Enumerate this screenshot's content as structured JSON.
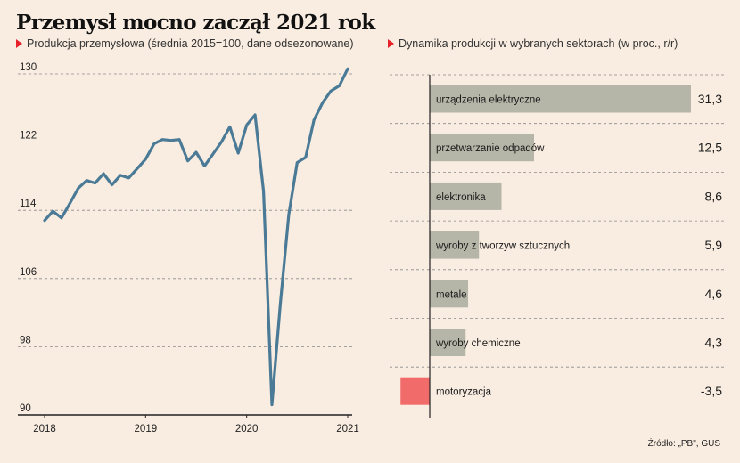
{
  "title": "Przemysł mocno zaczął 2021 rok",
  "left_subtitle": "Produkcja przemysłowa (średnia 2015=100, dane odsezonowane)",
  "right_subtitle": "Dynamika produkcji w wybranych sektorach (w proc., r/r)",
  "source": "Źródło: „PB\", GUS",
  "colors": {
    "background": "#f9ede1",
    "line": "#4a7a96",
    "bar_positive": "#b5b5a8",
    "bar_negative": "#f26b6b",
    "accent": "#e8202a"
  },
  "chart_data": [
    {
      "type": "line",
      "title": "",
      "xlabel": "",
      "ylabel": "",
      "ylim": [
        90,
        130
      ],
      "yticks": [
        90,
        98,
        106,
        114,
        122,
        130
      ],
      "xticks": [
        "2018",
        "2019",
        "2020",
        "2021"
      ],
      "xlim": [
        "2018-01",
        "2021-01"
      ],
      "grid": "horizontal dashed",
      "series": [
        {
          "x": [
            "2018-01",
            "2018-02",
            "2018-03",
            "2018-04",
            "2018-05",
            "2018-06",
            "2018-07",
            "2018-08",
            "2018-09",
            "2018-10",
            "2018-11",
            "2018-12",
            "2019-01",
            "2019-02",
            "2019-03",
            "2019-04",
            "2019-05",
            "2019-06",
            "2019-07",
            "2019-08",
            "2019-09",
            "2019-10",
            "2019-11",
            "2019-12",
            "2020-01",
            "2020-02",
            "2020-03",
            "2020-04",
            "2020-05",
            "2020-06",
            "2020-07",
            "2020-08",
            "2020-09",
            "2020-10",
            "2020-11",
            "2020-12",
            "2021-01"
          ],
          "values": [
            112.8,
            113.9,
            113.1,
            114.8,
            116.6,
            117.5,
            117.2,
            118.3,
            117.0,
            118.1,
            117.8,
            118.9,
            120.0,
            121.8,
            122.3,
            122.2,
            122.3,
            119.8,
            120.8,
            119.2,
            120.6,
            122.0,
            123.8,
            120.7,
            124.0,
            125.2,
            116.2,
            91.2,
            103.0,
            113.5,
            119.6,
            120.2,
            124.6,
            126.6,
            128.0,
            128.6,
            130.6
          ]
        }
      ]
    },
    {
      "type": "bar",
      "orientation": "horizontal",
      "title": "",
      "categories": [
        "urządzenia elektryczne",
        "przetwarzanie odpadów",
        "elektronika",
        "wyroby z tworzyw sztucznych",
        "metale",
        "wyroby chemiczne",
        "motoryzacja"
      ],
      "values": [
        31.3,
        12.5,
        8.6,
        5.9,
        4.6,
        4.3,
        -3.5
      ],
      "value_labels": [
        "31,3",
        "12,5",
        "8,6",
        "5,9",
        "4,6",
        "4,3",
        "-3,5"
      ],
      "grid": "horizontal dashed between rows"
    }
  ]
}
